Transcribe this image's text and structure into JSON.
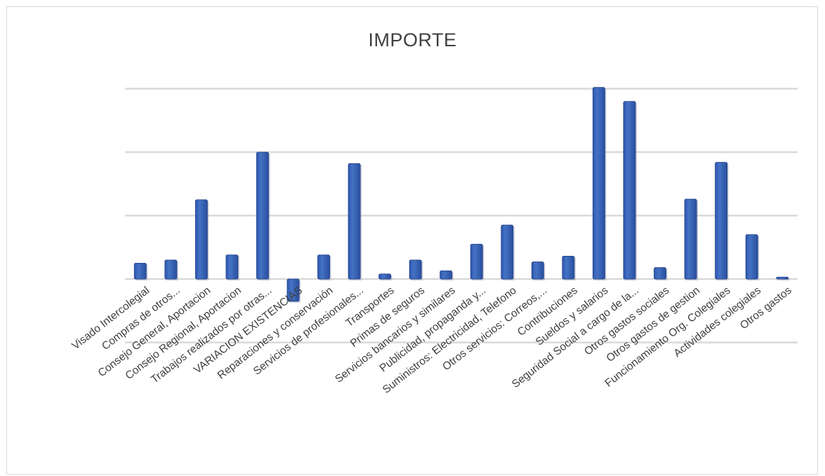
{
  "chart_data": {
    "type": "bar",
    "title": "IMPORTE",
    "xlabel": "",
    "ylabel": "",
    "grid": true,
    "legend": "none",
    "bar_color": "#4472c4",
    "ylim": [
      -1,
      3
    ],
    "categories": [
      "Visado Intercolegial",
      "Compras de otros...",
      "Consejo General, Aportacion",
      "Consejo Regional, Aportacion",
      "Trabajos realizados por otras...",
      "VARIACION EXISTENCIAS",
      "Reparaciones y conservación",
      "Servicios de profesionales...",
      "Transportes",
      "Primas de seguros",
      "Servicios bancarios y similares",
      "Publicidad, propaganda y...",
      "Suministros: Electricidad, Telefono",
      "Otros servicios: Correos,...",
      "Contribuciones",
      "Sueldos y salarios",
      "Seguridad Social a cargo de la...",
      "Otros gastos sociales",
      "Otros gastos de gestion",
      "Funcionamiento Org. Colegiales",
      "Actividades colegiales",
      "Otros gastos"
    ],
    "values": [
      0.25,
      0.3,
      1.25,
      0.38,
      2.0,
      -0.35,
      0.38,
      1.82,
      0.08,
      0.3,
      0.13,
      0.55,
      0.85,
      0.27,
      0.36,
      3.02,
      2.8,
      0.18,
      1.26,
      1.84,
      0.7,
      0.03
    ]
  }
}
